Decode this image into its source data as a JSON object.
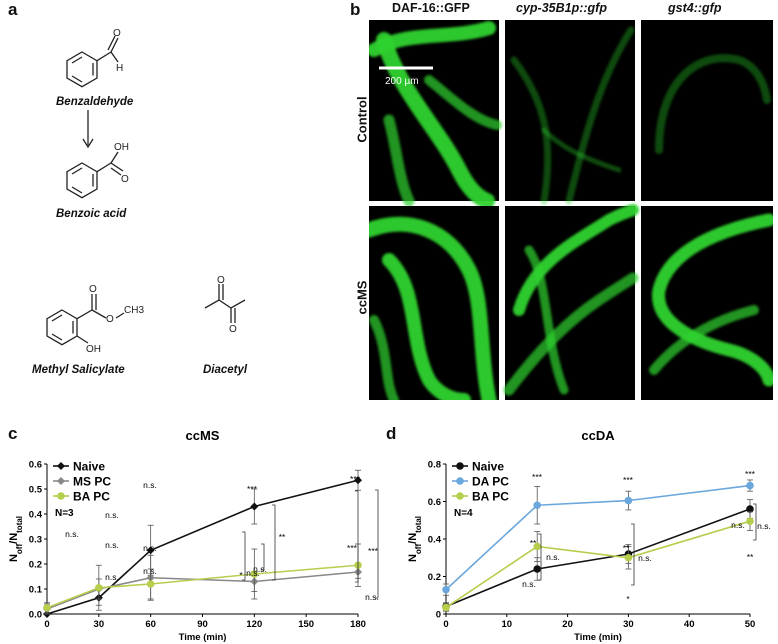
{
  "panels": {
    "a": "a",
    "b": "b",
    "c": "c",
    "d": "d"
  },
  "chemistry": {
    "benzaldehyde": "Benzaldehyde",
    "benzoic_acid": "Benzoic acid",
    "methyl_salicylate": "Methyl Salicylate",
    "diacetyl": "Diacetyl",
    "atom_O": "O",
    "atom_H": "H",
    "atom_OH": "OH",
    "atom_CH3": "CH3"
  },
  "microscopy": {
    "columns": [
      "DAF-16::GFP",
      "cyp-35B1p::gfp",
      "gst4::gfp"
    ],
    "rows": [
      "Control",
      "ccMS"
    ],
    "scale_bar": "200 µm",
    "fluor_color": "#2fd32f"
  },
  "chart_data": [
    {
      "type": "line",
      "title": "ccMS",
      "xlabel": "Time (min)",
      "ylabel_main": "N",
      "ylabel_sub1": "off",
      "ylabel_sep": "/N",
      "ylabel_sub2": "total",
      "x": [
        0,
        30,
        60,
        120,
        180
      ],
      "xticks": [
        "0",
        "30",
        "60",
        "90",
        "120",
        "150",
        "180"
      ],
      "xlim": [
        0,
        180
      ],
      "ylim": [
        0,
        0.6
      ],
      "yticks": [
        "0.0",
        "0.1",
        "0.2",
        "0.3",
        "0.4",
        "0.5",
        "0.6"
      ],
      "legend_position": "top-left",
      "annotation_n": "N=3",
      "series": [
        {
          "name": "Naive",
          "color": "#111111",
          "marker": "diamond",
          "values": [
            0.0,
            0.065,
            0.255,
            0.43,
            0.535
          ],
          "errors": [
            0.02,
            0.03,
            0.1,
            0.07,
            0.04
          ]
        },
        {
          "name": "MS PC",
          "color": "#888888",
          "marker": "diamond",
          "values": [
            0.02,
            0.1,
            0.145,
            0.13,
            0.168
          ],
          "errors": [
            0.02,
            0.04,
            0.09,
            0.04,
            0.025
          ]
        },
        {
          "name": "BA PC",
          "color": "#b5cf4d",
          "marker": "circle",
          "values": [
            0.025,
            0.105,
            0.12,
            0.16,
            0.195
          ],
          "errors": [
            0.02,
            0.09,
            0.06,
            0.1,
            0.085
          ]
        }
      ],
      "annotations": [
        "n.s.",
        "n.s.",
        "n.s.",
        "n.s.",
        "n.s.",
        "n.s.",
        "n.s.",
        "n.s.",
        "***",
        "*",
        "n.s.",
        "**",
        "***",
        "***",
        "***",
        "n.s."
      ]
    },
    {
      "type": "line",
      "title": "ccDA",
      "xlabel": "Time (min)",
      "ylabel_main": "N",
      "ylabel_sub1": "off",
      "ylabel_sep": "/N",
      "ylabel_sub2": "total",
      "x": [
        0,
        15,
        30,
        50
      ],
      "xticks": [
        "0",
        "10",
        "20",
        "30",
        "40",
        "50"
      ],
      "xlim": [
        0,
        50
      ],
      "ylim": [
        0,
        0.8
      ],
      "yticks": [
        "0",
        "0.2",
        "0.4",
        "0.6",
        "0.8"
      ],
      "legend_position": "top-left",
      "annotation_n": "N=4",
      "series": [
        {
          "name": "Naive",
          "color": "#111111",
          "marker": "circle",
          "values": [
            0.04,
            0.24,
            0.32,
            0.56
          ],
          "errors": [
            0.02,
            0.06,
            0.05,
            0.05
          ]
        },
        {
          "name": "DA PC",
          "color": "#6aa7dc",
          "marker": "circle",
          "values": [
            0.13,
            0.58,
            0.605,
            0.685
          ],
          "errors": [
            0.03,
            0.1,
            0.05,
            0.03
          ]
        },
        {
          "name": "BA PC",
          "color": "#b5cf4d",
          "marker": "circle",
          "values": [
            0.035,
            0.36,
            0.3,
            0.495
          ],
          "errors": [
            0.02,
            0.08,
            0.06,
            0.05
          ]
        }
      ],
      "annotations": [
        "***",
        "**",
        "n.s.",
        "n.s.",
        "***",
        "**",
        "n.s.",
        "*",
        "***",
        "n.s.",
        "n.s.",
        "**"
      ]
    }
  ]
}
